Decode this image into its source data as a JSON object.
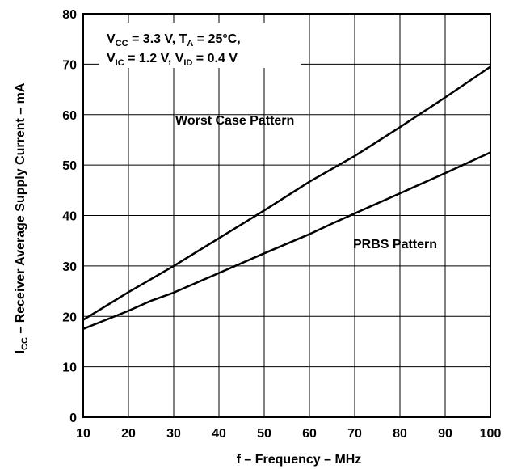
{
  "chart_data": {
    "type": "line",
    "xlabel": "f – Frequency – MHz",
    "ylabel": {
      "pre": "I",
      "sub": "CC",
      "post": " – Receiver Average Supply Current – mA"
    },
    "xlim": [
      10,
      100
    ],
    "ylim": [
      0,
      80
    ],
    "xticks": [
      10,
      20,
      30,
      40,
      50,
      60,
      70,
      80,
      90,
      100
    ],
    "yticks": [
      0,
      10,
      20,
      30,
      40,
      50,
      60,
      70,
      80
    ],
    "grid": true,
    "conditions": [
      [
        {
          "t": "V"
        },
        {
          "t": "CC",
          "sub": true
        },
        {
          "t": " = 3.3 V, T"
        },
        {
          "t": "A",
          "sub": true
        },
        {
          "t": " = 25°C,"
        }
      ],
      [
        {
          "t": "V"
        },
        {
          "t": "IC",
          "sub": true
        },
        {
          "t": " = 1.2 V, V"
        },
        {
          "t": "ID",
          "sub": true
        },
        {
          "t": " = 0.4 V"
        }
      ]
    ],
    "series": [
      {
        "name": "Worst Case Pattern",
        "x": [
          10,
          20,
          30,
          40,
          50,
          60,
          70,
          80,
          90,
          100
        ],
        "y": [
          19.3,
          24.8,
          30.0,
          35.5,
          41.0,
          46.7,
          51.8,
          57.5,
          63.4,
          69.5
        ]
      },
      {
        "name": "PRBS Pattern",
        "x": [
          10,
          15,
          20,
          25,
          30,
          40,
          50,
          60,
          65,
          70,
          80,
          90,
          100
        ],
        "y": [
          17.5,
          19.3,
          21.1,
          23.1,
          24.7,
          28.6,
          32.5,
          36.3,
          38.4,
          40.4,
          44.4,
          48.4,
          52.5
        ]
      }
    ]
  }
}
